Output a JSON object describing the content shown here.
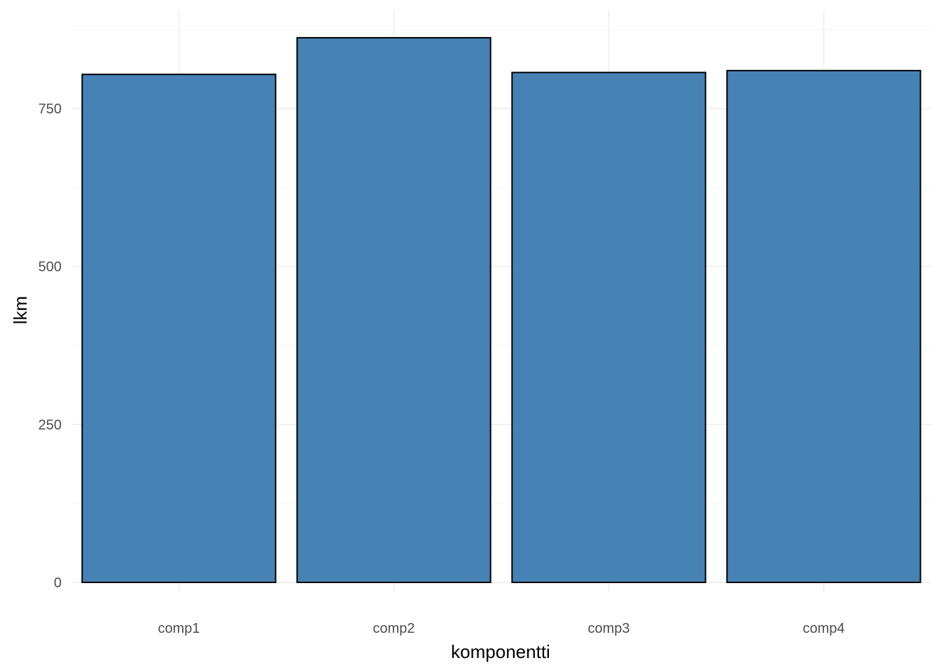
{
  "chart_data": {
    "type": "bar",
    "categories": [
      "comp1",
      "comp2",
      "comp3",
      "comp4"
    ],
    "values": [
      804,
      862,
      807,
      810
    ],
    "title": "",
    "xlabel": "komponentti",
    "ylabel": "lkm",
    "ylim": [
      0,
      880
    ],
    "yticks": [
      0,
      250,
      500,
      750
    ],
    "yticks_minor": [
      125,
      375,
      625,
      875
    ],
    "grid": true,
    "legend": "none",
    "colors": {
      "bar_fill": "#4682B4",
      "bar_stroke": "#000000",
      "grid_major": "#ebebeb",
      "grid_minor": "#f4f4f4"
    }
  }
}
